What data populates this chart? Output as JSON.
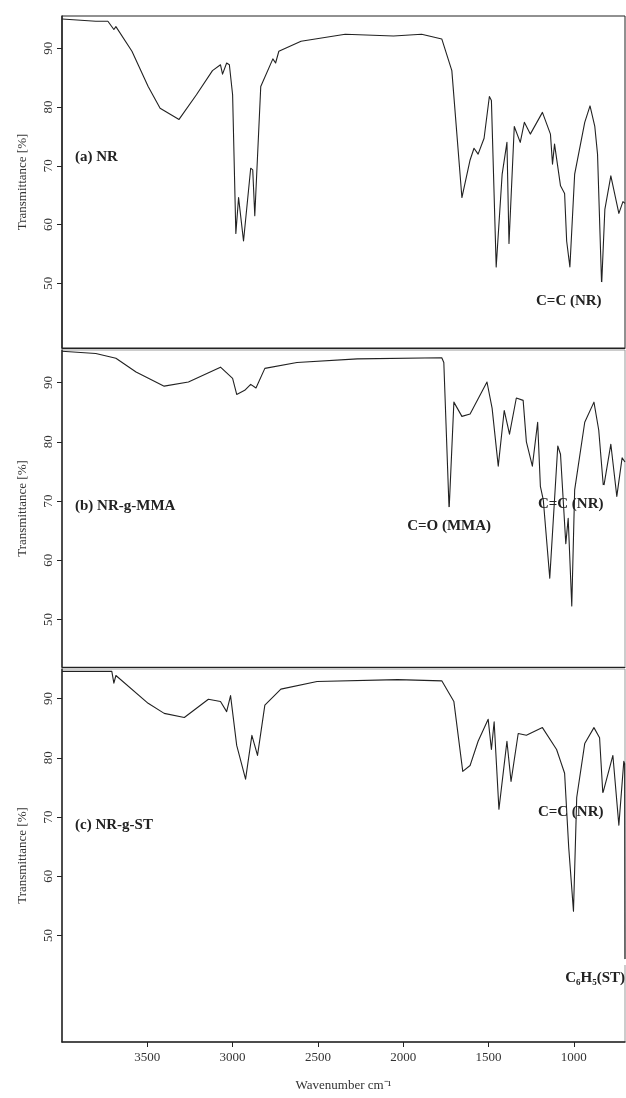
{
  "chart_data": [
    {
      "type": "line",
      "title": "(a) NR",
      "ylabel": "Transmittance [%]",
      "xlim": [
        4000,
        700
      ],
      "ylim": [
        39,
        95.5
      ],
      "xticks": [
        3500,
        3000,
        2500,
        2000,
        1500,
        1000
      ],
      "yticks": [
        50,
        60,
        70,
        80,
        90
      ],
      "tick_labels": "y",
      "grid": false,
      "series": [
        {
          "color": "#222222",
          "x": [
            4000,
            3802,
            3731,
            3696,
            3684,
            3590,
            3495,
            3425,
            3314,
            3212,
            3118,
            3071,
            3059,
            3035,
            3019,
            3000,
            2981,
            2965,
            2936,
            2894,
            2882,
            2870,
            2835,
            2764,
            2748,
            2729,
            2599,
            2340,
            2057,
            1892,
            1774,
            1715,
            1656,
            1608,
            1585,
            1561,
            1526,
            1495,
            1483,
            1455,
            1420,
            1392,
            1380,
            1349,
            1314,
            1290,
            1255,
            1184,
            1137,
            1125,
            1113,
            1078,
            1054,
            1042,
            1023,
            995,
            936,
            905,
            877,
            861,
            837,
            818,
            783,
            736,
            712,
            700
          ],
          "values": [
            95,
            94.6,
            94.6,
            93.2,
            93.7,
            89.5,
            83.5,
            79.8,
            77.9,
            82.1,
            86.2,
            87.2,
            85.6,
            87.5,
            87.2,
            82.1,
            58.5,
            64.6,
            57.2,
            69.6,
            69.3,
            61.5,
            83.5,
            88.2,
            87.5,
            89.5,
            91.2,
            92.4,
            92.1,
            92.4,
            91.6,
            86.2,
            64.6,
            71,
            73,
            72,
            74.7,
            81.8,
            81.1,
            52.8,
            68.6,
            74,
            56.8,
            76.7,
            74,
            77.4,
            75.4,
            79.1,
            75.4,
            70.3,
            73.7,
            66.6,
            65.3,
            57.2,
            52.8,
            68.6,
            77.4,
            80.2,
            76.7,
            72,
            49.7,
            62.6,
            68.3,
            61.9,
            63.9,
            63.6
          ]
        }
      ],
      "annotations": [
        {
          "text": "C=C (NR)",
          "x": 837,
          "y": 49.7
        }
      ]
    },
    {
      "type": "line",
      "title": "(b) NR-g-MMA",
      "ylabel": "Transmittance [%]",
      "xlim": [
        4000,
        700
      ],
      "ylim": [
        42,
        95.5
      ],
      "xticks": [
        3500,
        3000,
        2500,
        2000,
        1500,
        1000
      ],
      "yticks": [
        50,
        60,
        70,
        80,
        90
      ],
      "tick_labels": "y",
      "grid": false,
      "series": [
        {
          "color": "#222222",
          "x": [
            4000,
            3802,
            3684,
            3566,
            3401,
            3259,
            3071,
            3000,
            2976,
            2929,
            2894,
            2863,
            2811,
            2623,
            2269,
            1774,
            1762,
            1731,
            1703,
            1656,
            1608,
            1509,
            1479,
            1443,
            1408,
            1377,
            1337,
            1297,
            1278,
            1243,
            1212,
            1196,
            1179,
            1141,
            1094,
            1078,
            1047,
            1033,
            1012,
            995,
            936,
            882,
            854,
            826,
            783,
            748,
            717,
            700
          ],
          "values": [
            95.3,
            94.9,
            94.1,
            91.8,
            89.4,
            90.1,
            92.6,
            90.7,
            88,
            88.7,
            89.7,
            89.1,
            92.4,
            93.4,
            94,
            94.2,
            93.4,
            68.5,
            86.7,
            84.3,
            84.7,
            90.1,
            85.7,
            75.9,
            85.3,
            81.3,
            87.4,
            87,
            80,
            75.9,
            83.3,
            72.5,
            70.2,
            57,
            79.3,
            77.9,
            62.8,
            67.1,
            52.3,
            71.9,
            83.3,
            86.7,
            82,
            72.2,
            79.6,
            70.8,
            77.3,
            76.6
          ]
        }
      ],
      "annotations": [
        {
          "text": "C=O (MMA)",
          "x": 1731,
          "y": 68.5
        },
        {
          "text": "C=C (NR)",
          "x": 826,
          "y": 72.2
        }
      ]
    },
    {
      "type": "line",
      "title": "(c) NR-g-ST",
      "ylabel": "Transmittance [%]",
      "xlabel": "Wavenumber cm⁻¹",
      "xlim": [
        4000,
        700
      ],
      "ylim": [
        32,
        95
      ],
      "xticks": [
        3500,
        3000,
        2500,
        2000,
        1500,
        1000
      ],
      "yticks": [
        50,
        60,
        70,
        80,
        90
      ],
      "grid": false,
      "series": [
        {
          "color": "#222222",
          "x": [
            4000,
            3708,
            3696,
            3684,
            3495,
            3401,
            3283,
            3142,
            3071,
            3035,
            3012,
            2976,
            2924,
            2887,
            2854,
            2811,
            2717,
            2505,
            2033,
            1774,
            1703,
            1651,
            1608,
            1561,
            1502,
            1483,
            1467,
            1439,
            1392,
            1368,
            1326,
            1278,
            1184,
            1101,
            1054,
            1030,
            1002,
            983,
            936,
            882,
            849,
            830,
            771,
            736,
            707,
            702,
            700
          ],
          "values": [
            94.6,
            94.6,
            92.6,
            93.9,
            89.2,
            87.5,
            86.8,
            89.9,
            89.5,
            87.8,
            90.5,
            82.1,
            76.4,
            83.8,
            80.4,
            88.9,
            91.6,
            92.9,
            93.2,
            93,
            89.5,
            77.7,
            78.7,
            82.8,
            86.5,
            81.4,
            86.1,
            71.3,
            82.8,
            76,
            84.1,
            83.8,
            85.1,
            81.4,
            77.4,
            64.9,
            54.1,
            73.3,
            82.4,
            85.1,
            83.4,
            74,
            80.4,
            68.6,
            79.4,
            79,
            45.5
          ]
        }
      ],
      "annotations": [
        {
          "text": "C=C (NR)",
          "x": 826,
          "y": 73.6
        },
        {
          "text": "C₆H₅(ST)",
          "x": 700,
          "y": 45.5
        }
      ]
    }
  ]
}
